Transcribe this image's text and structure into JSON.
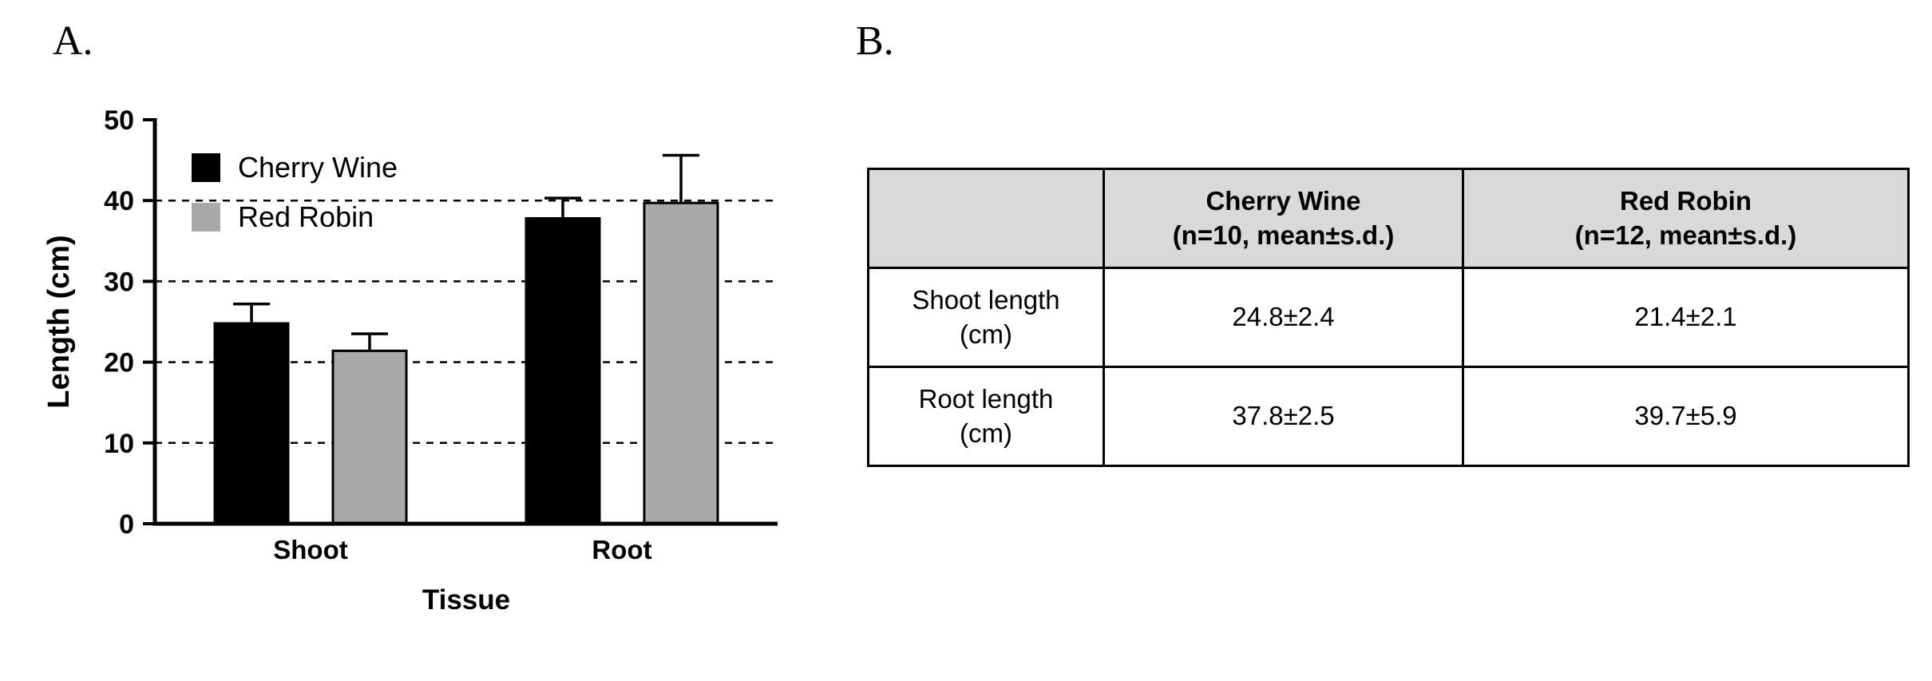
{
  "figure": {
    "panel_a": {
      "label": "A."
    },
    "panel_b": {
      "label": "B."
    }
  },
  "chart_data": {
    "type": "bar",
    "title": "",
    "xlabel": "Tissue",
    "ylabel": "Length (cm)",
    "categories": [
      "Shoot",
      "Root"
    ],
    "series": [
      {
        "name": "Cherry Wine",
        "color": "#000000",
        "values": [
          24.8,
          37.8
        ],
        "errors": [
          2.4,
          2.5
        ]
      },
      {
        "name": "Red Robin",
        "color": "#a9a9a9",
        "values": [
          21.4,
          39.7
        ],
        "errors": [
          2.1,
          5.9
        ]
      }
    ],
    "ylim": [
      0,
      50
    ],
    "yticks": [
      0,
      10,
      20,
      30,
      40,
      50
    ],
    "gridlines": {
      "style": "dashed",
      "at": [
        10,
        20,
        30,
        40
      ]
    },
    "legend": {
      "position": "top-left-inside",
      "entries": [
        "Cherry Wine",
        "Red Robin"
      ]
    }
  },
  "table": {
    "header": {
      "corner": "",
      "cherry_wine": {
        "title": "Cherry Wine",
        "subtitle": "(n=10, mean±s.d.)"
      },
      "red_robin": {
        "title": "Red Robin",
        "subtitle": "(n=12, mean±s.d.)"
      }
    },
    "rows": [
      {
        "label": {
          "line1": "Shoot length",
          "line2": "(cm)"
        },
        "cherry_wine": "24.8±2.4",
        "red_robin": "21.4±2.1"
      },
      {
        "label": {
          "line1": "Root length",
          "line2": "(cm)"
        },
        "cherry_wine": "37.8±2.5",
        "red_robin": "39.7±5.9"
      }
    ]
  },
  "colors": {
    "series_cherry_wine": "#000000",
    "series_red_robin": "#a9a9a9",
    "table_header_bg": "#d9d9d9",
    "axis": "#000000",
    "background": "#ffffff"
  }
}
